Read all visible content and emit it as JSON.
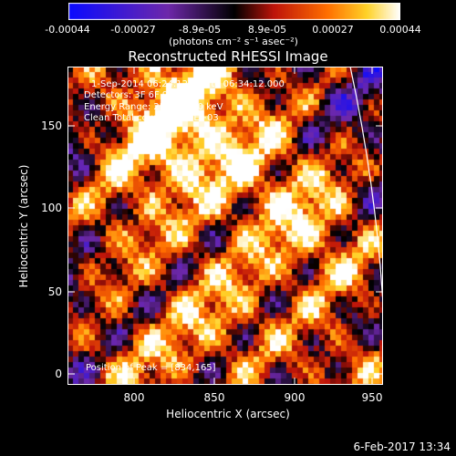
{
  "colorbar": {
    "ticks": [
      "-0.00044",
      "-0.00027",
      "-8.9e-05",
      "8.9e-05",
      "0.00027",
      "0.00044"
    ],
    "units": "(photons cm⁻² s⁻¹ asec⁻²)"
  },
  "title": "Reconstructed RHESSI Image",
  "info": {
    "time": "1-Sep-2014 06:24:12.000 to 06:34:12.000",
    "detectors": "Detectors: 3F 6F 9F 8F 9F",
    "energy": "Energy Range: 25.0 - 50.0 keV",
    "method": "Clean    Total counts: 5.39E+03",
    "peak": "Position of Peak = [834,165]"
  },
  "axes": {
    "xlabel": "Heliocentric X (arcsec)",
    "ylabel": "Heliocentric Y (arcsec)",
    "xticks": [
      "800",
      "850",
      "900",
      "950"
    ],
    "yticks": [
      "150",
      "100",
      "50",
      "0"
    ]
  },
  "footer": "6-Feb-2017 13:34",
  "colors": {
    "limb": "#ffffff",
    "background": "#000000"
  }
}
